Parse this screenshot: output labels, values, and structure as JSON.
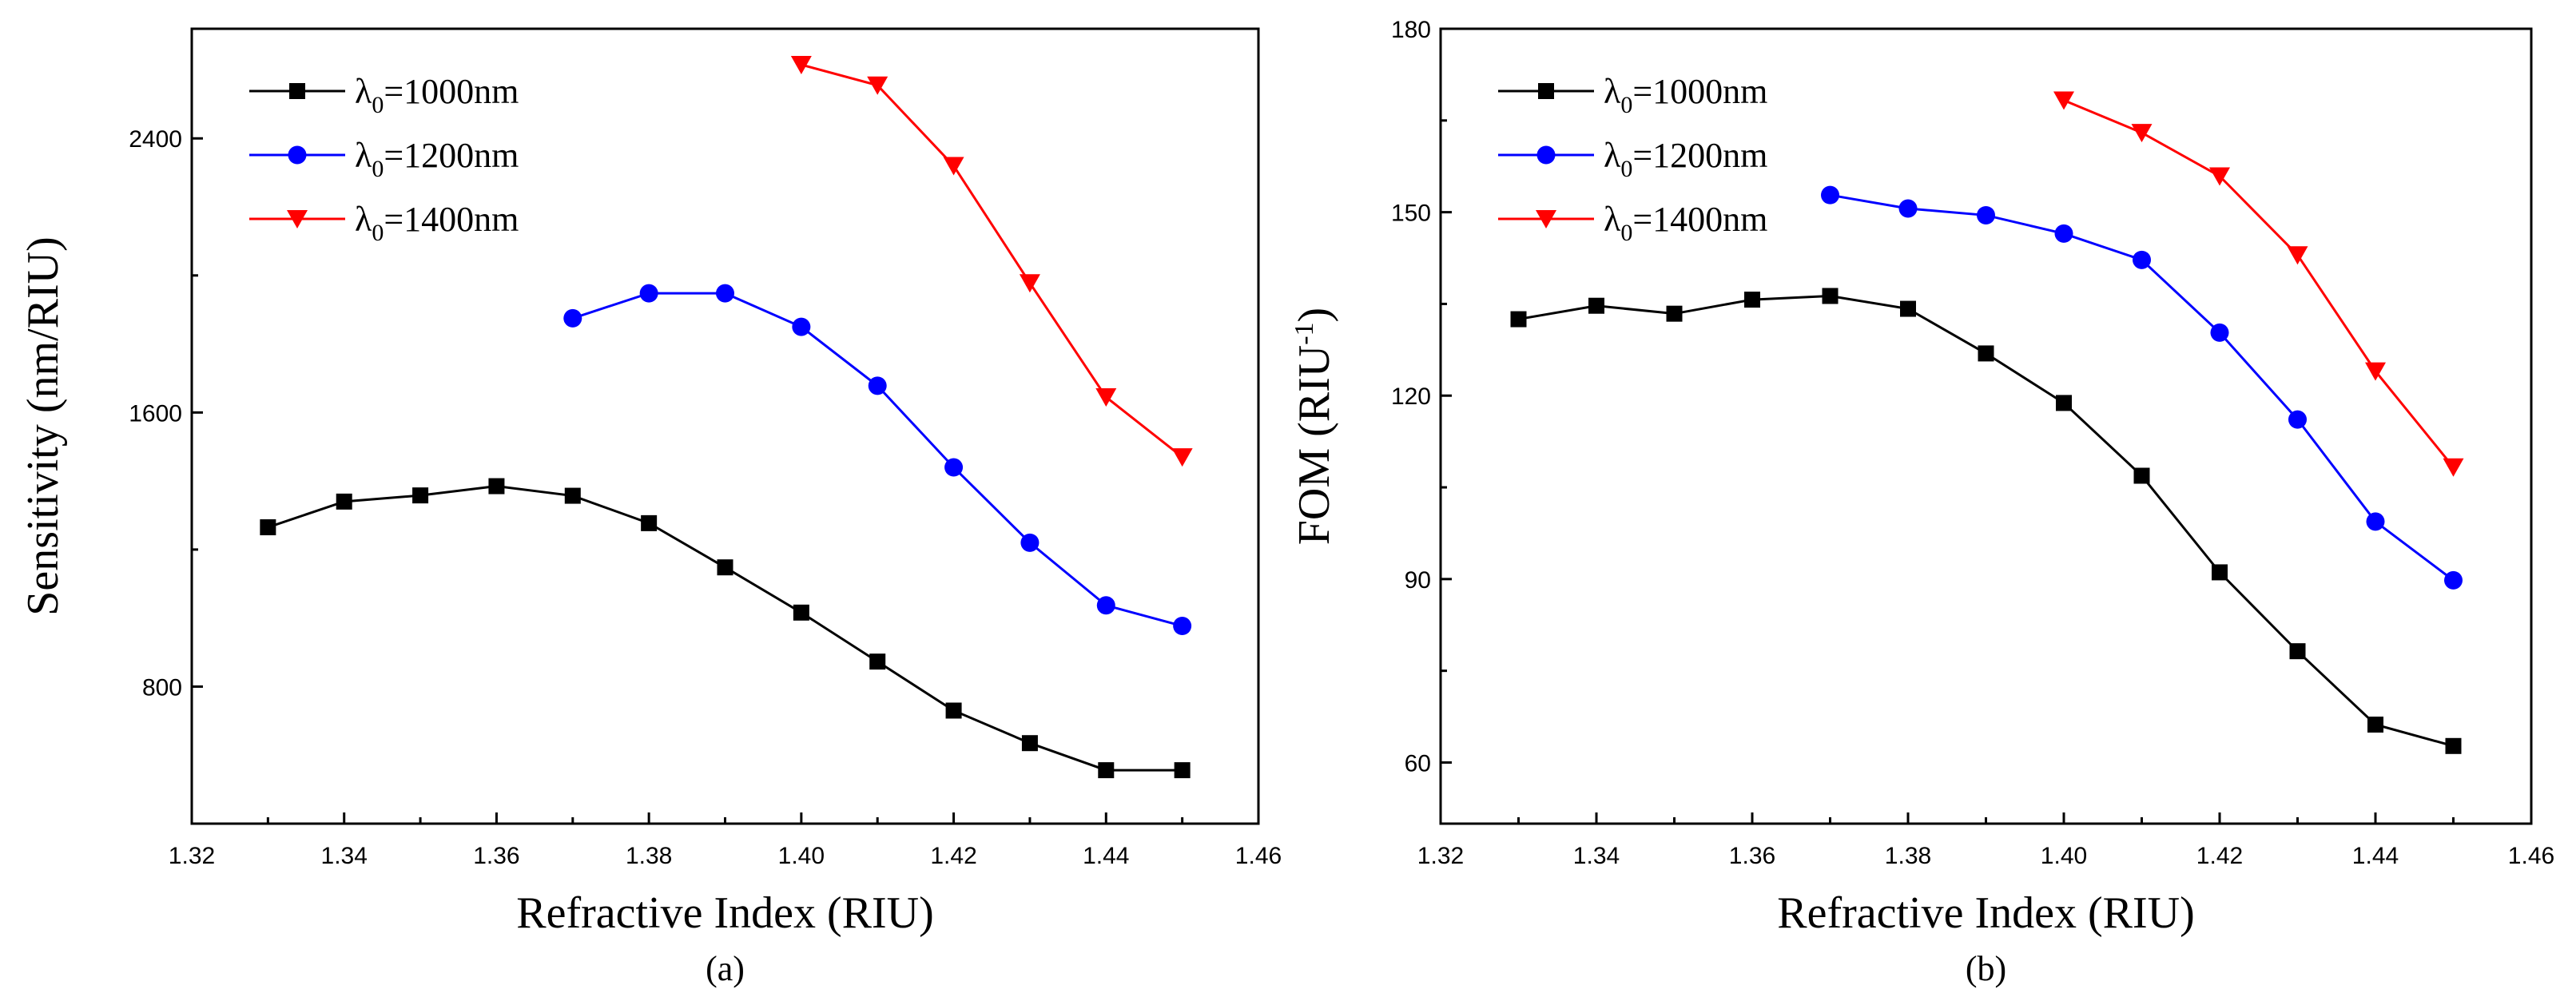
{
  "chart_data": [
    {
      "type": "line",
      "panel_label": "(a)",
      "xlabel": "Refractive Index (RIU)",
      "ylabel": "Sensitivity (nm/RIU)",
      "xlim": [
        1.32,
        1.46
      ],
      "ylim": [
        400,
        2720
      ],
      "xticks": [
        "1.32",
        "1.34",
        "1.36",
        "1.38",
        "1.40",
        "1.42",
        "1.44",
        "1.46"
      ],
      "xtick_values": [
        1.32,
        1.34,
        1.36,
        1.38,
        1.4,
        1.42,
        1.44,
        1.46
      ],
      "yticks": [
        "800",
        "1600",
        "2400"
      ],
      "ytick_values": [
        800,
        1600,
        2400
      ],
      "legend_position": "top-left",
      "series": [
        {
          "name_prefix": "λ",
          "name_sub": "0",
          "name_suffix": "=1000nm",
          "color": "#000000",
          "marker": "square",
          "x": [
            1.33,
            1.34,
            1.35,
            1.36,
            1.37,
            1.38,
            1.39,
            1.4,
            1.41,
            1.42,
            1.43,
            1.44,
            1.45
          ],
          "y": [
            1265,
            1340,
            1358,
            1385,
            1357,
            1277,
            1148,
            1016,
            873,
            730,
            635,
            556,
            556
          ]
        },
        {
          "name_prefix": "λ",
          "name_sub": "0",
          "name_suffix": "=1200nm",
          "color": "#0000ff",
          "marker": "circle",
          "x": [
            1.37,
            1.38,
            1.39,
            1.4,
            1.41,
            1.42,
            1.43,
            1.44,
            1.45
          ],
          "y": [
            1875,
            1948,
            1948,
            1850,
            1678,
            1440,
            1220,
            1037,
            977
          ]
        },
        {
          "name_prefix": "λ",
          "name_sub": "0",
          "name_suffix": "=1400nm",
          "color": "#ff0000",
          "marker": "triangle-down",
          "x": [
            1.4,
            1.41,
            1.42,
            1.43,
            1.44,
            1.45
          ],
          "y": [
            2615,
            2555,
            2320,
            1978,
            1645,
            1470
          ]
        }
      ]
    },
    {
      "type": "line",
      "panel_label": "(b)",
      "xlabel": "Refractive Index (RIU)",
      "ylabel_main": "FOM (RIU",
      "ylabel_sup": "-1",
      "ylabel_end": ")",
      "xlim": [
        1.32,
        1.46
      ],
      "ylim": [
        50,
        180
      ],
      "xticks": [
        "1.32",
        "1.34",
        "1.36",
        "1.38",
        "1.40",
        "1.42",
        "1.44",
        "1.46"
      ],
      "xtick_values": [
        1.32,
        1.34,
        1.36,
        1.38,
        1.4,
        1.42,
        1.44,
        1.46
      ],
      "yticks": [
        "60",
        "90",
        "120",
        "150",
        "180"
      ],
      "ytick_values": [
        60,
        90,
        120,
        150,
        180
      ],
      "legend_position": "top-left",
      "series": [
        {
          "name_prefix": "λ",
          "name_sub": "0",
          "name_suffix": "=1000nm",
          "color": "#000000",
          "marker": "square",
          "x": [
            1.33,
            1.34,
            1.35,
            1.36,
            1.37,
            1.38,
            1.39,
            1.4,
            1.41,
            1.42,
            1.43,
            1.44,
            1.45
          ],
          "y": [
            132.5,
            134.7,
            133.4,
            135.7,
            136.3,
            134.2,
            126.9,
            118.8,
            106.9,
            91.1,
            78.2,
            66.2,
            62.7
          ]
        },
        {
          "name_prefix": "λ",
          "name_sub": "0",
          "name_suffix": "=1200nm",
          "color": "#0000ff",
          "marker": "circle",
          "x": [
            1.37,
            1.38,
            1.39,
            1.4,
            1.41,
            1.42,
            1.43,
            1.44,
            1.45
          ],
          "y": [
            152.8,
            150.6,
            149.5,
            146.5,
            142.2,
            130.3,
            116.1,
            99.4,
            89.8
          ]
        },
        {
          "name_prefix": "λ",
          "name_sub": "0",
          "name_suffix": "=1400nm",
          "color": "#ff0000",
          "marker": "triangle-down",
          "x": [
            1.4,
            1.41,
            1.42,
            1.43,
            1.44,
            1.45
          ],
          "y": [
            168.3,
            163.0,
            155.9,
            143.0,
            124.0,
            108.3
          ]
        }
      ]
    }
  ]
}
